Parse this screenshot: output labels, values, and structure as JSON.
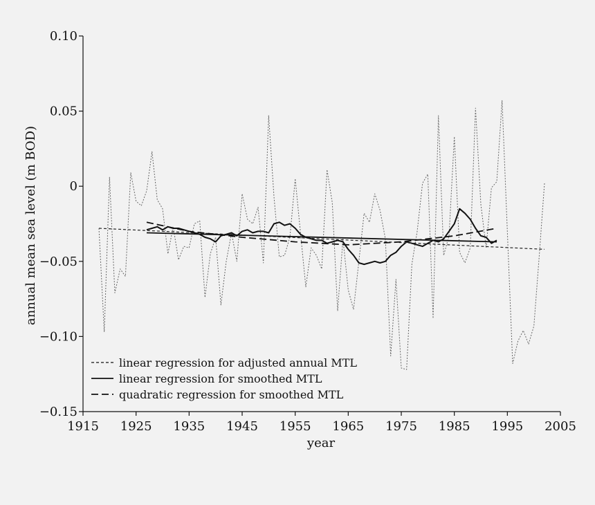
{
  "chart_data": {
    "type": "line",
    "title": "",
    "xlabel": "year",
    "ylabel": "annual mean sea level (m BOD)",
    "xlim": [
      1915,
      2005
    ],
    "ylim": [
      -0.15,
      0.1
    ],
    "grid": false,
    "legend_position": "bottom-left",
    "x_ticks": [
      1915,
      1925,
      1935,
      1945,
      1955,
      1965,
      1975,
      1985,
      1995,
      2005
    ],
    "x_tick_labels": [
      "1915",
      "1925",
      "1935",
      "1945",
      "1955",
      "1965",
      "1975",
      "1985",
      "1995",
      "2005"
    ],
    "y_ticks": [
      0.1,
      0.05,
      0,
      -0.05,
      -0.1,
      -0.15
    ],
    "y_tick_labels": [
      "0.10",
      "0.05",
      "0",
      "−0.05",
      "−0.10",
      "−0.15"
    ],
    "legend": [
      "linear regression for adjusted annual MTL",
      "linear regression for smoothed MTL",
      "quadratic regression for smoothed MTL"
    ],
    "series": [
      {
        "name": "adjusted annual MTL",
        "style": "dotted-thin",
        "color": "#666666",
        "x": [
          1918,
          1919,
          1920,
          1921,
          1922,
          1923,
          1924,
          1925,
          1926,
          1927,
          1928,
          1929,
          1930,
          1931,
          1932,
          1933,
          1934,
          1935,
          1936,
          1937,
          1938,
          1939,
          1940,
          1941,
          1942,
          1943,
          1944,
          1945,
          1946,
          1947,
          1948,
          1949,
          1950,
          1951,
          1952,
          1953,
          1954,
          1955,
          1956,
          1957,
          1958,
          1959,
          1960,
          1961,
          1962,
          1963,
          1964,
          1965,
          1966,
          1967,
          1968,
          1969,
          1970,
          1971,
          1972,
          1973,
          1974,
          1975,
          1976,
          1977,
          1978,
          1979,
          1980,
          1981,
          1982,
          1983,
          1984,
          1985,
          1986,
          1987,
          1988,
          1989,
          1990,
          1991,
          1992,
          1993,
          1994,
          1995,
          1996,
          1997,
          1998,
          1999,
          2000,
          2001,
          2002
        ],
        "y": [
          -0.028,
          -0.097,
          0.006,
          -0.071,
          -0.055,
          -0.06,
          0.009,
          -0.01,
          -0.013,
          -0.003,
          0.023,
          -0.009,
          -0.015,
          -0.045,
          -0.027,
          -0.049,
          -0.04,
          -0.041,
          -0.025,
          -0.023,
          -0.074,
          -0.045,
          -0.034,
          -0.079,
          -0.05,
          -0.031,
          -0.05,
          -0.005,
          -0.022,
          -0.025,
          -0.014,
          -0.051,
          0.047,
          -0.007,
          -0.047,
          -0.046,
          -0.034,
          0.005,
          -0.031,
          -0.067,
          -0.041,
          -0.046,
          -0.055,
          0.011,
          -0.011,
          -0.083,
          -0.035,
          -0.069,
          -0.082,
          -0.05,
          -0.018,
          -0.024,
          -0.005,
          -0.016,
          -0.035,
          -0.113,
          -0.062,
          -0.121,
          -0.122,
          -0.052,
          -0.03,
          0.002,
          0.008,
          -0.088,
          0.047,
          -0.046,
          -0.033,
          0.033,
          -0.044,
          -0.051,
          -0.041,
          0.052,
          -0.012,
          -0.041,
          -0.001,
          0.003,
          0.057,
          -0.03,
          -0.118,
          -0.103,
          -0.096,
          -0.105,
          -0.093,
          -0.047,
          0.002
        ]
      },
      {
        "name": "smoothed MTL",
        "style": "solid-thick",
        "color": "#111111",
        "x": [
          1927,
          1928,
          1929,
          1930,
          1931,
          1932,
          1933,
          1934,
          1935,
          1936,
          1937,
          1938,
          1939,
          1940,
          1941,
          1942,
          1943,
          1944,
          1945,
          1946,
          1947,
          1948,
          1949,
          1950,
          1951,
          1952,
          1953,
          1954,
          1955,
          1956,
          1957,
          1958,
          1959,
          1960,
          1961,
          1962,
          1963,
          1964,
          1965,
          1966,
          1967,
          1968,
          1969,
          1970,
          1971,
          1972,
          1973,
          1974,
          1975,
          1976,
          1977,
          1978,
          1979,
          1980,
          1981,
          1982,
          1983,
          1984,
          1985,
          1986,
          1987,
          1988,
          1989,
          1990,
          1991,
          1992,
          1993
        ],
        "y": [
          -0.029,
          -0.028,
          -0.027,
          -0.029,
          -0.027,
          -0.028,
          -0.028,
          -0.029,
          -0.03,
          -0.031,
          -0.032,
          -0.034,
          -0.035,
          -0.037,
          -0.033,
          -0.032,
          -0.031,
          -0.033,
          -0.03,
          -0.029,
          -0.031,
          -0.03,
          -0.03,
          -0.031,
          -0.025,
          -0.024,
          -0.026,
          -0.025,
          -0.028,
          -0.032,
          -0.034,
          -0.035,
          -0.036,
          -0.036,
          -0.038,
          -0.037,
          -0.036,
          -0.037,
          -0.042,
          -0.046,
          -0.051,
          -0.052,
          -0.051,
          -0.05,
          -0.051,
          -0.05,
          -0.046,
          -0.044,
          -0.04,
          -0.037,
          -0.038,
          -0.039,
          -0.04,
          -0.038,
          -0.036,
          -0.037,
          -0.035,
          -0.03,
          -0.025,
          -0.015,
          -0.018,
          -0.022,
          -0.028,
          -0.033,
          -0.034,
          -0.038,
          -0.036
        ]
      },
      {
        "name": "linear regression for adjusted annual MTL",
        "style": "dashed-fine",
        "color": "#222222",
        "x": [
          1918,
          2002
        ],
        "y": [
          -0.028,
          -0.042
        ]
      },
      {
        "name": "linear regression for smoothed MTL",
        "style": "solid-medium",
        "color": "#111111",
        "x": [
          1927,
          1993
        ],
        "y": [
          -0.031,
          -0.037
        ]
      },
      {
        "name": "quadratic regression for smoothed MTL",
        "style": "dashed-long",
        "color": "#111111",
        "x": [
          1927,
          1935,
          1945,
          1955,
          1965,
          1975,
          1985,
          1993
        ],
        "y": [
          -0.024,
          -0.03,
          -0.034,
          -0.037,
          -0.039,
          -0.037,
          -0.033,
          -0.028
        ]
      }
    ]
  }
}
